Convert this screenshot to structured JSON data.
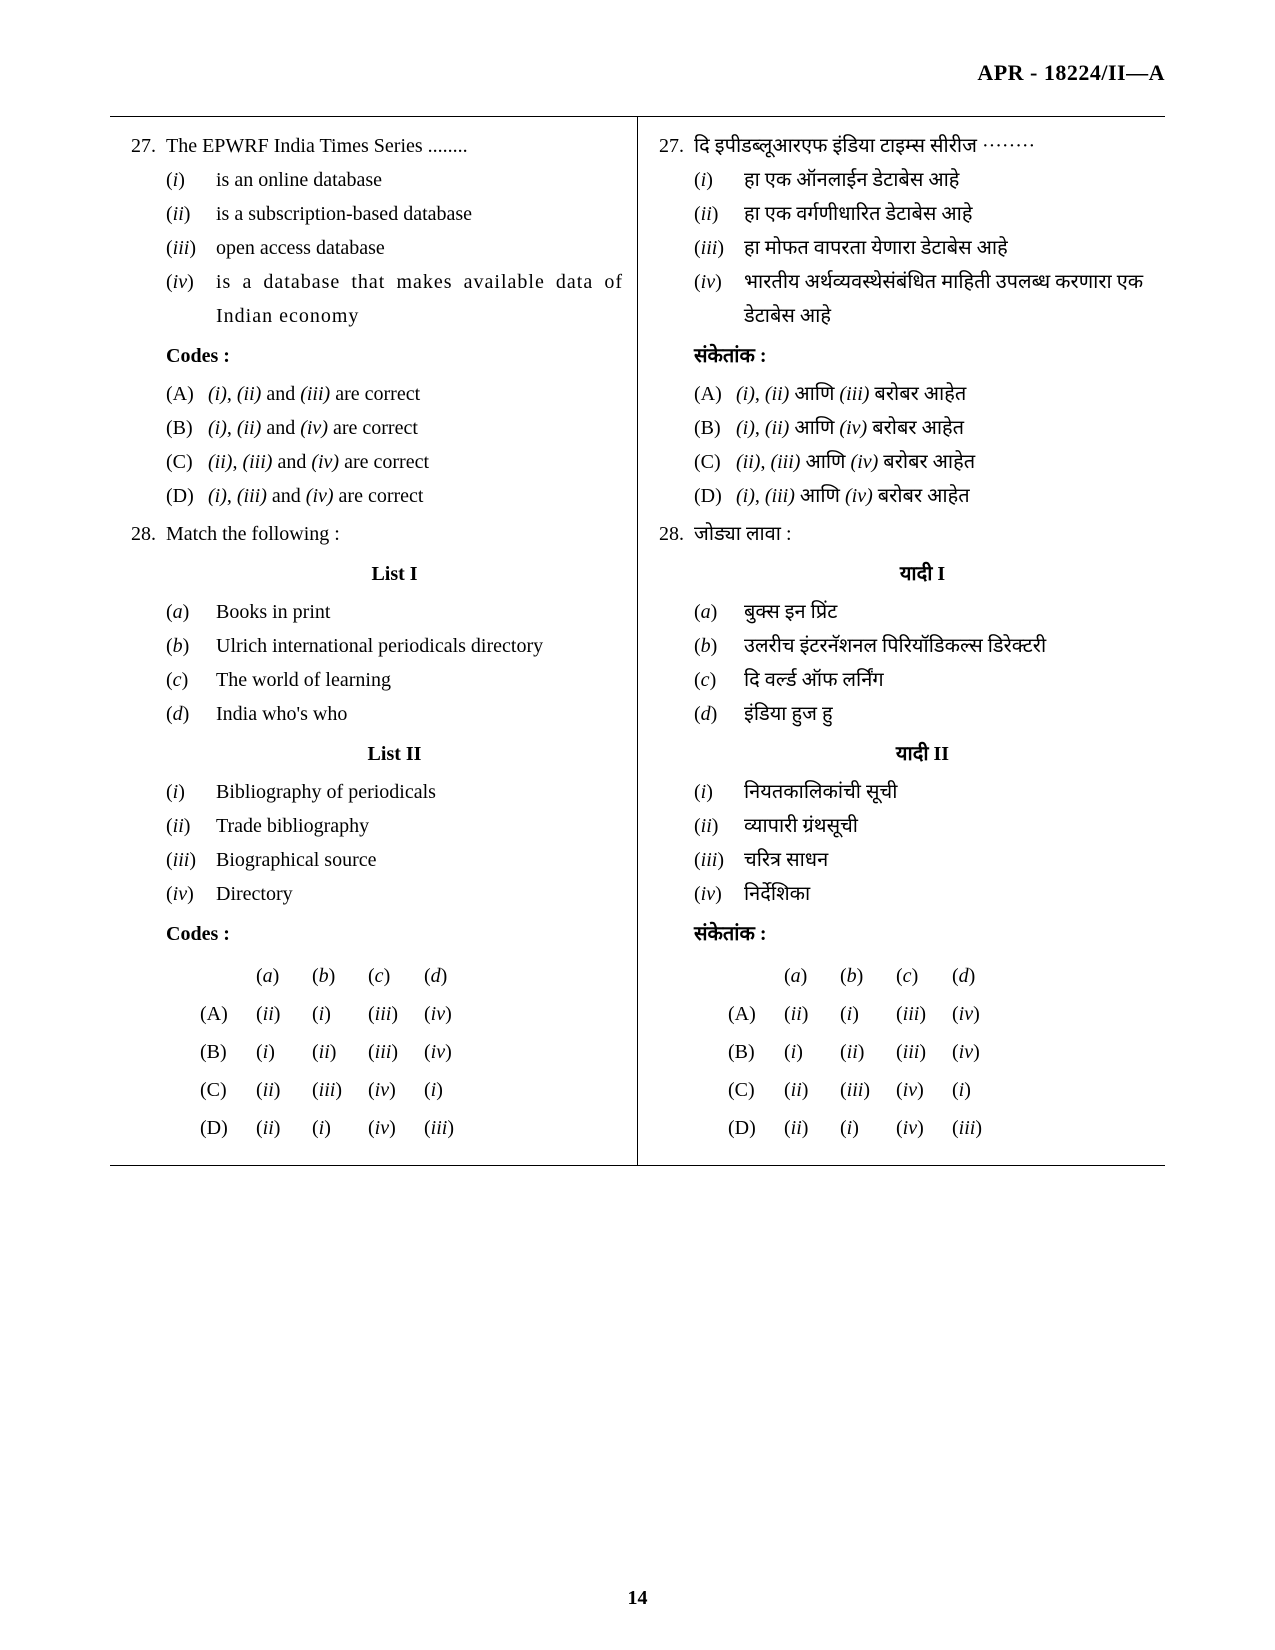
{
  "header": "APR - 18224/II—A",
  "page_number": "14",
  "left": {
    "q27": {
      "num": "27.",
      "stem": "The EPWRF India Times Series ........",
      "items": [
        {
          "label": "(i)",
          "text": "is an online database"
        },
        {
          "label": "(ii)",
          "text": "is a subscription-based database"
        },
        {
          "label": "(iii)",
          "text": "open access database"
        },
        {
          "label": "(iv)",
          "text": "is a database that makes available data of Indian economy"
        }
      ],
      "codes_head": "Codes :",
      "options": [
        {
          "label": "(A)",
          "text_a": "(i)",
          "text_b": ", ",
          "text_c": "(ii)",
          "text_d": " and ",
          "text_e": "(iii)",
          "text_f": " are correct"
        },
        {
          "label": "(B)",
          "text_a": "(i)",
          "text_b": ", ",
          "text_c": "(ii)",
          "text_d": " and ",
          "text_e": "(iv)",
          "text_f": " are correct"
        },
        {
          "label": "(C)",
          "text_a": "(ii)",
          "text_b": ", ",
          "text_c": "(iii)",
          "text_d": " and ",
          "text_e": "(iv)",
          "text_f": " are correct"
        },
        {
          "label": "(D)",
          "text_a": "(i)",
          "text_b": ", ",
          "text_c": "(iii)",
          "text_d": " and ",
          "text_e": "(iv)",
          "text_f": " are correct"
        }
      ]
    },
    "q28": {
      "num": "28.",
      "stem": "Match the following :",
      "list1_head": "List I",
      "list1": [
        {
          "label": "(a)",
          "text": "Books in print"
        },
        {
          "label": "(b)",
          "text": "Ulrich international periodicals directory"
        },
        {
          "label": "(c)",
          "text": "The world of learning"
        },
        {
          "label": "(d)",
          "text": "India who's who"
        }
      ],
      "list2_head": "List II",
      "list2": [
        {
          "label": "(i)",
          "text": "Bibliography of periodicals"
        },
        {
          "label": "(ii)",
          "text": "Trade bibliography"
        },
        {
          "label": "(iii)",
          "text": "Biographical source"
        },
        {
          "label": "(iv)",
          "text": "Directory"
        }
      ],
      "codes_head": "Codes :",
      "table_header": [
        "(a)",
        "(b)",
        "(c)",
        "(d)"
      ],
      "table_rows": [
        {
          "label": "(A)",
          "cells": [
            "(ii)",
            "(i)",
            "(iii)",
            "(iv)"
          ]
        },
        {
          "label": "(B)",
          "cells": [
            "(i)",
            "(ii)",
            "(iii)",
            "(iv)"
          ]
        },
        {
          "label": "(C)",
          "cells": [
            "(ii)",
            "(iii)",
            "(iv)",
            "(i)"
          ]
        },
        {
          "label": "(D)",
          "cells": [
            "(ii)",
            "(i)",
            "(iv)",
            "(iii)"
          ]
        }
      ]
    }
  },
  "right": {
    "q27": {
      "num": "27.",
      "stem": "दि इपीडब्लूआरएफ इंडिया टाइम्स सीरीज ········",
      "items": [
        {
          "label": "(i)",
          "text": "हा एक ऑनलाईन डेटाबेस आहे"
        },
        {
          "label": "(ii)",
          "text": "हा एक वर्गणीधारित डेटाबेस आहे"
        },
        {
          "label": "(iii)",
          "text": "हा मोफत वापरता येणारा डेटाबेस आहे"
        },
        {
          "label": "(iv)",
          "text": "भारतीय अर्थव्यवस्थेसंबंधित माहिती उपलब्ध करणारा एक डेटाबेस आहे"
        }
      ],
      "codes_head": "संकेतांक :",
      "options": [
        {
          "label": "(A)",
          "text_a": "(i)",
          "text_b": ", ",
          "text_c": "(ii)",
          "text_d": " आणि ",
          "text_e": "(iii)",
          "text_f": " बरोबर आहेत"
        },
        {
          "label": "(B)",
          "text_a": "(i)",
          "text_b": ", ",
          "text_c": "(ii)",
          "text_d": " आणि ",
          "text_e": "(iv)",
          "text_f": " बरोबर आहेत"
        },
        {
          "label": "(C)",
          "text_a": "(ii)",
          "text_b": ", ",
          "text_c": "(iii)",
          "text_d": " आणि ",
          "text_e": "(iv)",
          "text_f": " बरोबर आहेत"
        },
        {
          "label": "(D)",
          "text_a": "(i)",
          "text_b": ", ",
          "text_c": "(iii)",
          "text_d": " आणि ",
          "text_e": "(iv)",
          "text_f": " बरोबर आहेत"
        }
      ]
    },
    "q28": {
      "num": "28.",
      "stem": "जोड्या लावा :",
      "list1_head": "यादी I",
      "list1": [
        {
          "label": "(a)",
          "text": "बुक्स इन प्रिंट"
        },
        {
          "label": "(b)",
          "text": "उलरीच इंटरनॅशनल पिरियॉडिकल्स डिरेक्टरी"
        },
        {
          "label": "(c)",
          "text": "दि वर्ल्ड ऑफ लर्निंग"
        },
        {
          "label": "(d)",
          "text": "इंडिया हुज हु"
        }
      ],
      "list2_head": "यादी II",
      "list2": [
        {
          "label": "(i)",
          "text": "नियतकालिकांची सूची"
        },
        {
          "label": "(ii)",
          "text": "व्यापारी ग्रंथसूची"
        },
        {
          "label": "(iii)",
          "text": "चरित्र साधन"
        },
        {
          "label": "(iv)",
          "text": "निर्देशिका"
        }
      ],
      "codes_head": "संकेतांक :",
      "table_header": [
        "(a)",
        "(b)",
        "(c)",
        "(d)"
      ],
      "table_rows": [
        {
          "label": "(A)",
          "cells": [
            "(ii)",
            "(i)",
            "(iii)",
            "(iv)"
          ]
        },
        {
          "label": "(B)",
          "cells": [
            "(i)",
            "(ii)",
            "(iii)",
            "(iv)"
          ]
        },
        {
          "label": "(C)",
          "cells": [
            "(ii)",
            "(iii)",
            "(iv)",
            "(i)"
          ]
        },
        {
          "label": "(D)",
          "cells": [
            "(ii)",
            "(i)",
            "(iv)",
            "(iii)"
          ]
        }
      ]
    }
  }
}
